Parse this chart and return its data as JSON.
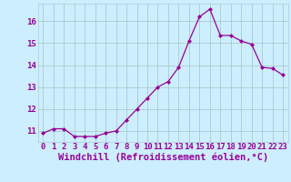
{
  "x": [
    0,
    1,
    2,
    3,
    4,
    5,
    6,
    7,
    8,
    9,
    10,
    11,
    12,
    13,
    14,
    15,
    16,
    17,
    18,
    19,
    20,
    21,
    22,
    23
  ],
  "y": [
    10.9,
    11.1,
    11.1,
    10.75,
    10.75,
    10.75,
    10.9,
    11.0,
    11.5,
    12.0,
    12.5,
    13.0,
    13.25,
    13.9,
    15.1,
    16.2,
    16.55,
    15.35,
    15.35,
    15.1,
    14.95,
    13.9,
    13.85,
    13.55
  ],
  "line_color": "#990099",
  "marker": "D",
  "marker_size": 2.0,
  "background_color": "#cceeff",
  "grid_color": "#aacccc",
  "xlabel": "Windchill (Refroidissement éolien,°C)",
  "xlabel_fontsize": 7.5,
  "tick_fontsize": 6.5,
  "ylim": [
    10.5,
    16.8
  ],
  "yticks": [
    11,
    12,
    13,
    14,
    15,
    16
  ],
  "xticks": [
    0,
    1,
    2,
    3,
    4,
    5,
    6,
    7,
    8,
    9,
    10,
    11,
    12,
    13,
    14,
    15,
    16,
    17,
    18,
    19,
    20,
    21,
    22,
    23
  ],
  "xlim": [
    -0.5,
    23.5
  ]
}
